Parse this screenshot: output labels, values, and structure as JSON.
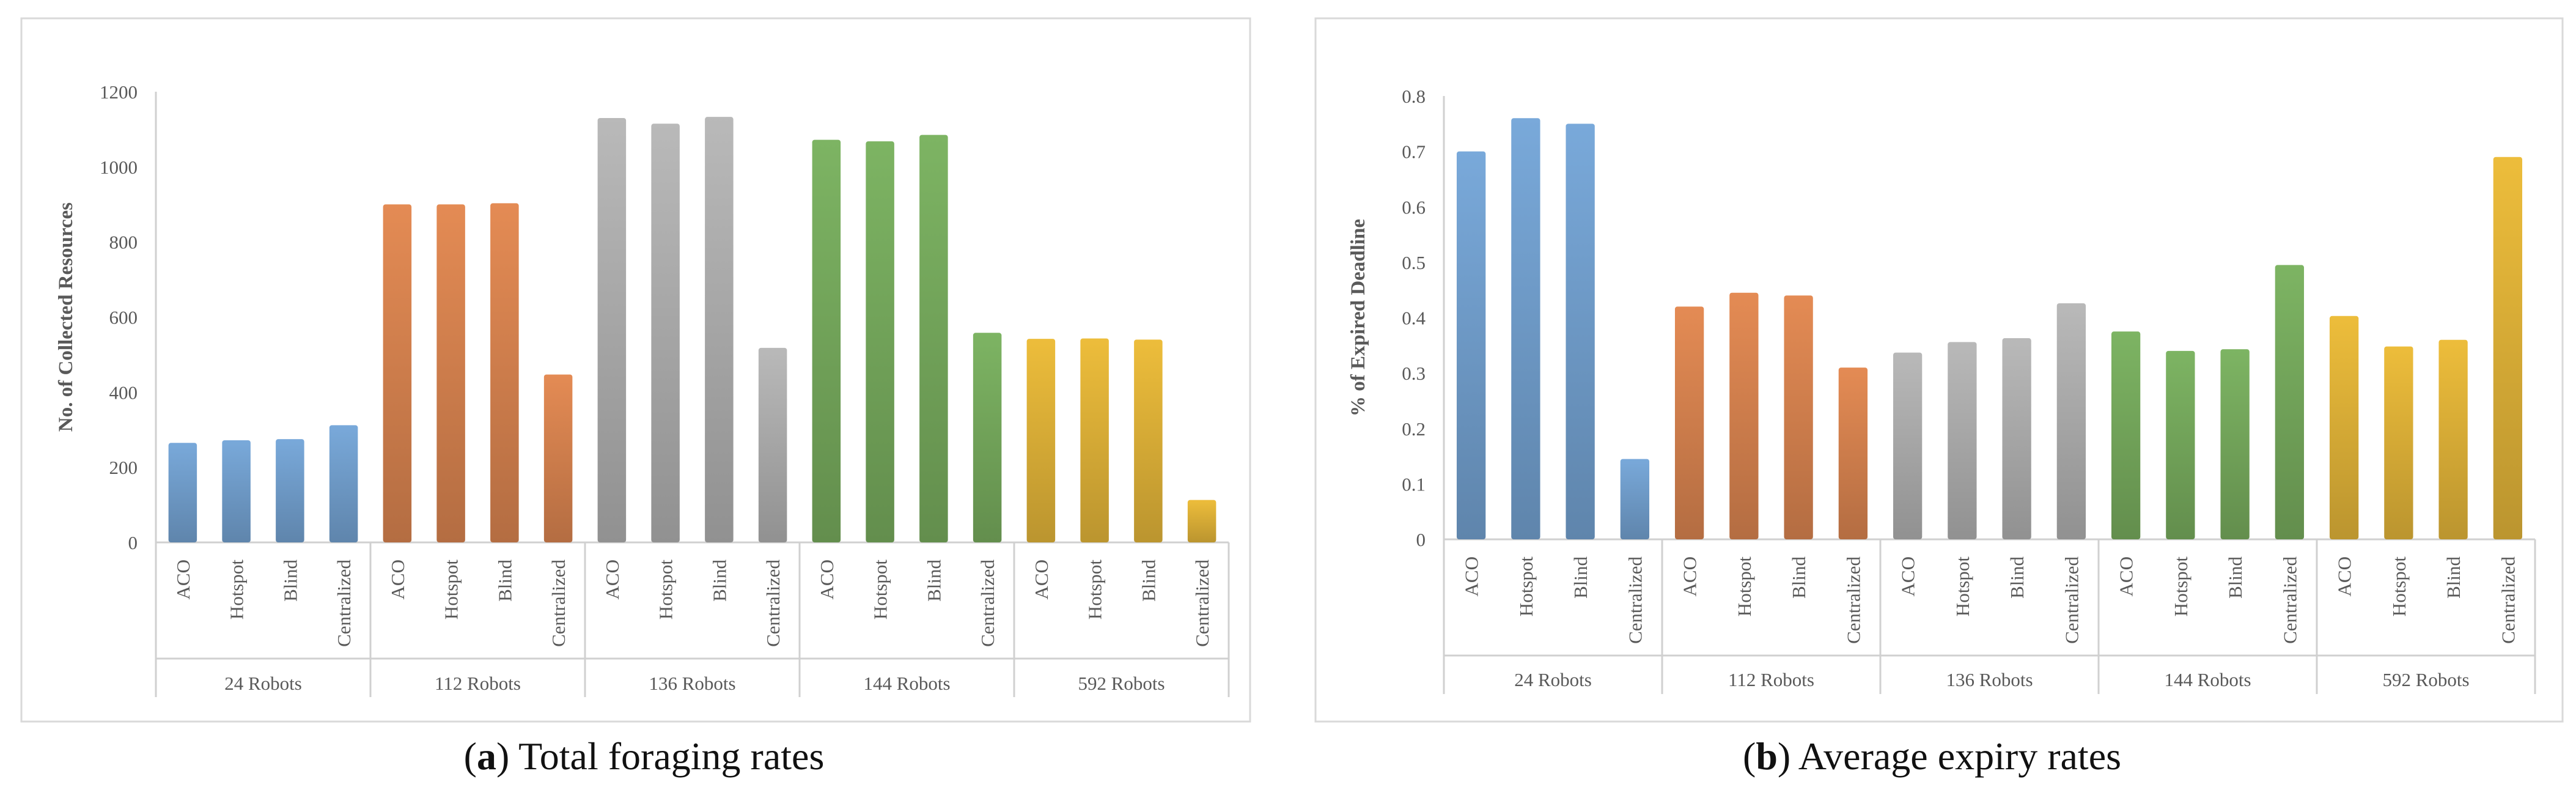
{
  "chart_data": [
    {
      "type": "bar",
      "panel_label": "a",
      "caption_text": "Total foraging rates",
      "ylabel": "No. of Collected Resources",
      "ylim": [
        0,
        1200
      ],
      "yticks": [
        "0",
        "200",
        "400",
        "600",
        "800",
        "1000",
        "1200"
      ],
      "groups": [
        {
          "name": "24 Robots",
          "color": "#6c97c3",
          "categories": [
            "ACO",
            "Hotspot",
            "Blind",
            "Centralized"
          ],
          "values": [
            265,
            272,
            275,
            312
          ]
        },
        {
          "name": "112 Robots",
          "color": "#cc7c4b",
          "categories": [
            "ACO",
            "Hotspot",
            "Blind",
            "Centralized"
          ],
          "values": [
            900,
            900,
            903,
            447
          ]
        },
        {
          "name": "136 Robots",
          "color": "#a5a5a5",
          "categories": [
            "ACO",
            "Hotspot",
            "Blind",
            "Centralized"
          ],
          "values": [
            1130,
            1115,
            1133,
            518
          ]
        },
        {
          "name": "144 Robots",
          "color": "#70a158",
          "categories": [
            "ACO",
            "Hotspot",
            "Blind",
            "Centralized"
          ],
          "values": [
            1072,
            1068,
            1085,
            558
          ]
        },
        {
          "name": "592 Robots",
          "color": "#d4a935",
          "categories": [
            "ACO",
            "Hotspot",
            "Blind",
            "Centralized"
          ],
          "values": [
            542,
            543,
            540,
            113
          ]
        }
      ]
    },
    {
      "type": "bar",
      "panel_label": "b",
      "caption_text": "Average expiry rates",
      "ylabel": "% of Expired Deadline",
      "ylim": [
        0,
        0.8
      ],
      "yticks": [
        "0",
        "0.1",
        "0.2",
        "0.3",
        "0.4",
        "0.5",
        "0.6",
        "0.7",
        "0.8"
      ],
      "groups": [
        {
          "name": "24 Robots",
          "color": "#6c97c3",
          "categories": [
            "ACO",
            "Hotspot",
            "Blind",
            "Centralized"
          ],
          "values": [
            0.7,
            0.76,
            0.75,
            0.145
          ]
        },
        {
          "name": "112 Robots",
          "color": "#cc7c4b",
          "categories": [
            "ACO",
            "Hotspot",
            "Blind",
            "Centralized"
          ],
          "values": [
            0.42,
            0.445,
            0.44,
            0.31
          ]
        },
        {
          "name": "136 Robots",
          "color": "#a5a5a5",
          "categories": [
            "ACO",
            "Hotspot",
            "Blind",
            "Centralized"
          ],
          "values": [
            0.337,
            0.356,
            0.363,
            0.426
          ]
        },
        {
          "name": "144 Robots",
          "color": "#70a158",
          "categories": [
            "ACO",
            "Hotspot",
            "Blind",
            "Centralized"
          ],
          "values": [
            0.375,
            0.34,
            0.343,
            0.495
          ]
        },
        {
          "name": "592 Robots",
          "color": "#d4a935",
          "categories": [
            "ACO",
            "Hotspot",
            "Blind",
            "Centralized"
          ],
          "values": [
            0.403,
            0.348,
            0.36,
            0.69
          ]
        }
      ]
    }
  ]
}
